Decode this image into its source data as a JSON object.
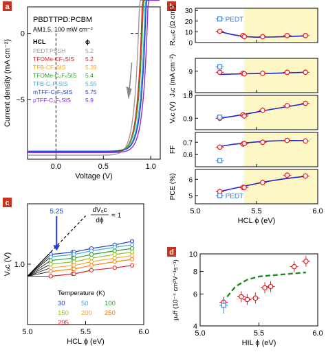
{
  "chart_data": [
    {
      "type": "line",
      "panel": "a",
      "xlabel": "Voltage (V)",
      "ylabel": "Current density (mA cm⁻²)",
      "xlim": [
        -0.3,
        1.1
      ],
      "ylim": [
        -9.5,
        2
      ],
      "xticks": [
        "0.0",
        "0.5",
        "1.0"
      ],
      "xtick_values": [
        0,
        0.5,
        1.0
      ],
      "yticks": [
        "0",
        "−5"
      ],
      "ytick_values": [
        0,
        -5
      ],
      "header": [
        "PBDTTPD:PCBM",
        "AM1.5, 100 mW cm⁻²"
      ],
      "legend_header": {
        "name": "HCL",
        "value": "ϕ"
      },
      "series": [
        {
          "name": "PEDT:PSSH",
          "phi": "5.2",
          "color": "#9a9a9a",
          "jsc": -9.2,
          "voc": 0.87
        },
        {
          "name": "TFOMe-CF₃SIS",
          "phi": "5.2",
          "color": "#e41a1c",
          "jsc": -9.0,
          "voc": 0.9
        },
        {
          "name": "TFB-CF₃SIS",
          "phi": "5.39",
          "color": "#f5a623",
          "jsc": -8.9,
          "voc": 0.91
        },
        {
          "name": "TFOMe-C₂F₅SIS",
          "phi": "5.4",
          "color": "#2ca02c",
          "jsc": -8.95,
          "voc": 0.91
        },
        {
          "name": "TFB-C₂F₅SIS",
          "phi": "5.55",
          "color": "#3fa9e0",
          "jsc": -8.9,
          "voc": 0.93
        },
        {
          "name": "mTFF-C₂F₅SIS",
          "phi": "5.75",
          "color": "#1f3fd0",
          "jsc": -8.9,
          "voc": 0.94
        },
        {
          "name": "pTFF-C₂F₅SIS",
          "phi": "5.9",
          "color": "#8a2be2",
          "jsc": -9.0,
          "voc": 0.96
        }
      ],
      "reference_lines": {
        "x": 0.0,
        "y": 0.0,
        "style": "dashed"
      }
    },
    {
      "type": "line",
      "panel": "b",
      "xlabel": "HCL ϕ (eV)",
      "xlim": [
        5.0,
        6.0
      ],
      "xticks": [
        "5.0",
        "5.5",
        "6.0"
      ],
      "xtick_values": [
        5.0,
        5.5,
        6.0
      ],
      "shaded_region": [
        5.4,
        6.0
      ],
      "shade_color": "#fdf7c6",
      "subplots": [
        {
          "ylabel": "Rₛ,ₒc (Ω cm²)",
          "ylim": [
            0,
            32
          ],
          "yticks": [
            "0",
            "10",
            "20",
            "30"
          ],
          "ytick_values": [
            0,
            10,
            20,
            30
          ],
          "x": [
            5.2,
            5.39,
            5.4,
            5.55,
            5.75,
            5.9
          ],
          "values": [
            10.5,
            6.5,
            5.5,
            5.5,
            6.5,
            6.5
          ],
          "fit_x": [
            5.2,
            5.3,
            5.4,
            5.5,
            5.6,
            5.7,
            5.8,
            5.9
          ],
          "fit": [
            10.2,
            7.5,
            5.6,
            5.0,
            5.1,
            5.4,
            5.8,
            6.2
          ],
          "reference": {
            "label": "PEDT",
            "x": 5.2,
            "y": 22
          }
        },
        {
          "ylabel": "Jₛc (mA cm⁻²)",
          "ylim": [
            8.0,
            9.6
          ],
          "yticks": [
            "8",
            "9"
          ],
          "ytick_values": [
            8,
            9
          ],
          "x": [
            5.2,
            5.39,
            5.4,
            5.55,
            5.75,
            5.9
          ],
          "values": [
            8.95,
            8.9,
            8.88,
            8.9,
            8.95,
            8.95
          ],
          "fit_x": [
            5.2,
            5.4,
            5.6,
            5.8,
            5.9
          ],
          "fit": [
            8.85,
            8.88,
            8.9,
            8.93,
            8.95
          ],
          "reference": {
            "x": 5.2,
            "y": 9.2
          }
        },
        {
          "ylabel": "Vₒc (V)",
          "ylim": [
            0.85,
            1.0
          ],
          "yticks": [
            "0.9",
            "1.0"
          ],
          "ytick_values": [
            0.9,
            1.0
          ],
          "x": [
            5.2,
            5.39,
            5.4,
            5.55,
            5.75,
            5.9
          ],
          "values": [
            0.9,
            0.915,
            0.91,
            0.935,
            0.955,
            0.965
          ],
          "fit_x": [
            5.2,
            5.3,
            5.4,
            5.5,
            5.6,
            5.7,
            5.8,
            5.9
          ],
          "fit": [
            0.9,
            0.908,
            0.917,
            0.927,
            0.937,
            0.946,
            0.955,
            0.964
          ],
          "reference": {
            "x": 5.2,
            "y": 0.905
          }
        },
        {
          "ylabel": "FF",
          "ylim": [
            0.5,
            0.78
          ],
          "yticks": [
            "0.6",
            "0.7"
          ],
          "ytick_values": [
            0.6,
            0.7
          ],
          "x": [
            5.2,
            5.39,
            5.4,
            5.55,
            5.75,
            5.9
          ],
          "values": [
            0.66,
            0.685,
            0.69,
            0.7,
            0.715,
            0.71
          ],
          "fit_x": [
            5.2,
            5.3,
            5.4,
            5.5,
            5.6,
            5.7,
            5.8,
            5.9
          ],
          "fit": [
            0.665,
            0.682,
            0.694,
            0.703,
            0.709,
            0.713,
            0.714,
            0.713
          ],
          "reference": {
            "x": 5.2,
            "y": 0.55
          }
        },
        {
          "ylabel": "PCE (%)",
          "ylim": [
            4.5,
            6.6
          ],
          "yticks": [
            "5",
            "6"
          ],
          "ytick_values": [
            5,
            6
          ],
          "x": [
            5.2,
            5.39,
            5.4,
            5.55,
            5.75,
            5.9
          ],
          "values": [
            5.25,
            5.5,
            5.5,
            5.8,
            6.25,
            6.2
          ],
          "fit_x": [
            5.2,
            5.3,
            5.4,
            5.5,
            5.6,
            5.7,
            5.8,
            5.9
          ],
          "fit": [
            5.25,
            5.42,
            5.58,
            5.74,
            5.88,
            6.0,
            6.1,
            6.18
          ],
          "reference": {
            "label": "PEDT",
            "x": 5.2,
            "y": 5.0
          }
        }
      ]
    },
    {
      "type": "line",
      "panel": "c",
      "xlabel": "HCL ϕ (eV)",
      "ylabel": "Vₒc (V)",
      "xlim": [
        5.0,
        6.0
      ],
      "ylim": [
        0.5,
        1.5
      ],
      "xticks": [
        "5.0",
        "5.5",
        "6.0"
      ],
      "xtick_values": [
        5.0,
        5.5,
        6.0
      ],
      "yticks": [
        "1.0"
      ],
      "ytick_values": [
        1.0
      ],
      "x": [
        5.2,
        5.39,
        5.4,
        5.55,
        5.75,
        5.9
      ],
      "annotation_arrow": "5.25",
      "annotation_slope": {
        "numerator": "dVₒc",
        "denominator": "dϕ",
        "equals": "= 1"
      },
      "legend_title": "Temperature (K)",
      "series": [
        {
          "name": "30",
          "color": "#1f3fd0",
          "values": [
            1.08,
            1.1,
            1.1,
            1.13,
            1.16,
            1.19
          ]
        },
        {
          "name": "50",
          "color": "#3fa9e0",
          "values": [
            1.06,
            1.08,
            1.08,
            1.11,
            1.14,
            1.16
          ]
        },
        {
          "name": "100",
          "color": "#2ca02c",
          "values": [
            1.03,
            1.05,
            1.05,
            1.08,
            1.11,
            1.13
          ]
        },
        {
          "name": "150",
          "color": "#8fc31f",
          "values": [
            1.0,
            1.02,
            1.02,
            1.05,
            1.08,
            1.1
          ]
        },
        {
          "name": "200",
          "color": "#f5a623",
          "values": [
            0.97,
            0.99,
            0.99,
            1.02,
            1.05,
            1.07
          ]
        },
        {
          "name": "250",
          "color": "#ff7f0e",
          "values": [
            0.94,
            0.96,
            0.96,
            0.99,
            1.02,
            1.04
          ]
        },
        {
          "name": "295",
          "color": "#e41a1c",
          "values": [
            0.9,
            0.92,
            0.92,
            0.95,
            0.97,
            0.99
          ]
        }
      ]
    },
    {
      "type": "scatter",
      "panel": "d",
      "xlabel": "HIL ϕ (eV)",
      "ylabel": "μₑff (10⁻⁴ cm²V⁻¹s⁻¹)",
      "xlim": [
        5.0,
        6.0
      ],
      "ylim": [
        4,
        10
      ],
      "yscale": "log",
      "xticks": [
        "5.0",
        "5.5",
        "6.0"
      ],
      "xtick_values": [
        5.0,
        5.5,
        6.0
      ],
      "yticks": [
        "4",
        "6",
        "8",
        "10"
      ],
      "ytick_values": [
        4,
        6,
        8,
        10
      ],
      "points": {
        "x": [
          5.2,
          5.35,
          5.4,
          5.47,
          5.55,
          5.6,
          5.8,
          5.9
        ],
        "y": [
          5.4,
          5.8,
          5.6,
          5.7,
          6.5,
          6.6,
          8.5,
          9.1
        ]
      },
      "reference_point": {
        "x": 5.2,
        "y": 5.2
      },
      "trend": {
        "x": [
          5.23,
          5.3,
          5.4,
          5.5,
          5.6,
          5.7,
          5.8,
          5.9
        ],
        "y": [
          5.8,
          6.6,
          7.2,
          7.5,
          7.6,
          7.7,
          7.8,
          7.9
        ]
      }
    }
  ],
  "panel_labels": [
    "a",
    "b",
    "c",
    "d"
  ],
  "colors": {
    "label_bg": "#c8321e",
    "fit_line": "#1f1fd0",
    "trend_line": "#1e8a1e",
    "marker": "#e41a1c",
    "reference_marker": "#3b7fd6"
  }
}
